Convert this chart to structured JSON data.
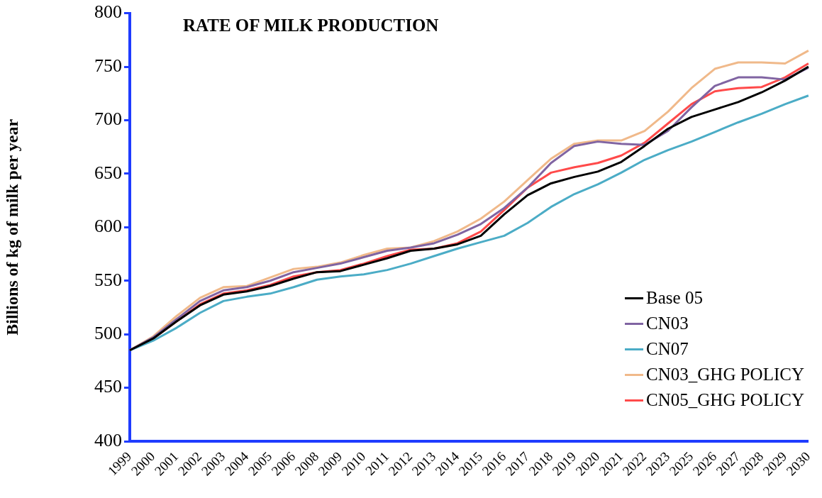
{
  "chart_data": {
    "type": "line",
    "title": "RATE OF MILK PRODUCTION",
    "ylabel": "Billions of kg of milk per year",
    "categories": [
      "1999",
      "2000",
      "2001",
      "2002",
      "2003",
      "2004",
      "2005",
      "2006",
      "2008",
      "2009",
      "2010",
      "2011",
      "2012",
      "2013",
      "2014",
      "2015",
      "2016",
      "2017",
      "2018",
      "2019",
      "2020",
      "2021",
      "2022",
      "2023",
      "2025",
      "2026",
      "2027",
      "2028",
      "2029",
      "2030"
    ],
    "ylim": [
      400,
      800
    ],
    "yticks": [
      400,
      450,
      500,
      550,
      600,
      650,
      700,
      750,
      800
    ],
    "grid": false,
    "legend": "bottom right",
    "marker": "none",
    "line_style": "solid",
    "series": [
      {
        "name": "Base 05",
        "color": "#000000",
        "values": [
          485,
          496,
          512,
          527,
          537,
          540,
          545,
          552,
          558,
          559,
          565,
          571,
          578,
          580,
          584,
          592,
          612,
          630,
          641,
          647,
          652,
          661,
          676,
          692,
          703,
          710,
          717,
          726,
          737,
          750
        ]
      },
      {
        "name": "CN03",
        "color": "#8064a2",
        "values": [
          485,
          497,
          514,
          531,
          541,
          544,
          550,
          558,
          562,
          566,
          572,
          578,
          581,
          585,
          593,
          603,
          618,
          637,
          660,
          676,
          680,
          678,
          677,
          690,
          712,
          732,
          740,
          740,
          738,
          749
        ]
      },
      {
        "name": "CN07",
        "color": "#4bacc6",
        "values": [
          485,
          494,
          506,
          520,
          531,
          535,
          538,
          544,
          551,
          554,
          556,
          560,
          566,
          573,
          580,
          586,
          592,
          604,
          619,
          631,
          640,
          651,
          663,
          672,
          680,
          689,
          698,
          706,
          715,
          723
        ]
      },
      {
        "name": "CN03_GHG POLICY",
        "color": "#f0b98a",
        "values": [
          485,
          498,
          517,
          534,
          544,
          545,
          553,
          561,
          563,
          567,
          574,
          580,
          581,
          587,
          596,
          608,
          624,
          644,
          664,
          678,
          681,
          681,
          690,
          708,
          730,
          748,
          754,
          754,
          753,
          765
        ]
      },
      {
        "name": "CN05_GHG POLICY",
        "color": "#ff4a4a",
        "values": [
          485,
          496,
          512,
          528,
          538,
          541,
          546,
          554,
          558,
          560,
          566,
          573,
          579,
          580,
          585,
          596,
          616,
          637,
          651,
          656,
          660,
          667,
          679,
          697,
          715,
          727,
          730,
          731,
          740,
          753
        ]
      }
    ]
  }
}
